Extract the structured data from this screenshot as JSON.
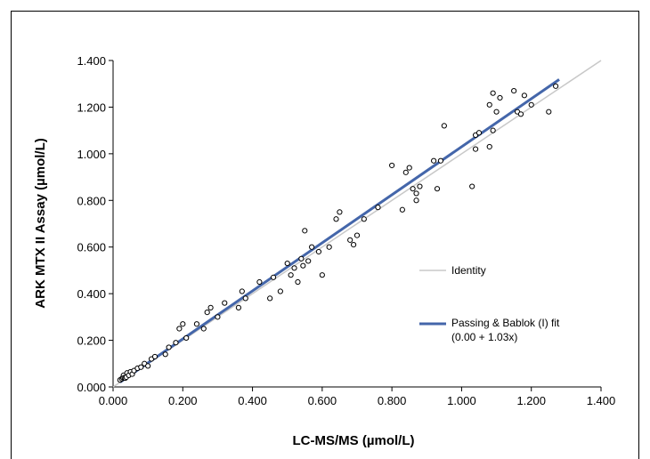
{
  "chart_data": {
    "type": "scatter",
    "xlabel": "LC-MS/MS (µmol/L)",
    "ylabel": "ARK MTX II Assay (µmol/L)",
    "xlim": [
      0,
      1.4
    ],
    "ylim": [
      0,
      1.4
    ],
    "x_ticks": [
      "0.000",
      "0.200",
      "0.400",
      "0.600",
      "0.800",
      "1.000",
      "1.200",
      "1.400"
    ],
    "y_ticks": [
      "0.000",
      "0.200",
      "0.400",
      "0.600",
      "0.800",
      "1.000",
      "1.200",
      "1.400"
    ],
    "grid": false,
    "legend_position": "right",
    "series": [
      {
        "kind": "points",
        "marker": "open-circle",
        "x": [
          0.02,
          0.025,
          0.028,
          0.03,
          0.032,
          0.035,
          0.038,
          0.04,
          0.045,
          0.05,
          0.055,
          0.06,
          0.07,
          0.08,
          0.09,
          0.1,
          0.11,
          0.12,
          0.15,
          0.16,
          0.18,
          0.19,
          0.2,
          0.21,
          0.24,
          0.26,
          0.27,
          0.28,
          0.3,
          0.32,
          0.36,
          0.37,
          0.38,
          0.42,
          0.45,
          0.46,
          0.48,
          0.5,
          0.51,
          0.52,
          0.53,
          0.54,
          0.545,
          0.55,
          0.56,
          0.57,
          0.59,
          0.6,
          0.62,
          0.64,
          0.65,
          0.68,
          0.69,
          0.7,
          0.72,
          0.76,
          0.8,
          0.83,
          0.84,
          0.85,
          0.86,
          0.87,
          0.87,
          0.88,
          0.92,
          0.93,
          0.94,
          0.95,
          1.03,
          1.04,
          1.04,
          1.05,
          1.08,
          1.08,
          1.09,
          1.09,
          1.1,
          1.11,
          1.15,
          1.16,
          1.17,
          1.18,
          1.2,
          1.25,
          1.27
        ],
        "y": [
          0.03,
          0.035,
          0.04,
          0.05,
          0.04,
          0.038,
          0.042,
          0.06,
          0.05,
          0.065,
          0.055,
          0.07,
          0.08,
          0.085,
          0.1,
          0.09,
          0.12,
          0.13,
          0.14,
          0.17,
          0.19,
          0.25,
          0.27,
          0.21,
          0.27,
          0.25,
          0.32,
          0.34,
          0.3,
          0.36,
          0.34,
          0.41,
          0.38,
          0.45,
          0.38,
          0.47,
          0.41,
          0.53,
          0.48,
          0.51,
          0.45,
          0.55,
          0.52,
          0.67,
          0.54,
          0.6,
          0.58,
          0.48,
          0.6,
          0.72,
          0.75,
          0.63,
          0.61,
          0.65,
          0.72,
          0.77,
          0.95,
          0.76,
          0.92,
          0.94,
          0.85,
          0.8,
          0.83,
          0.86,
          0.97,
          0.85,
          0.97,
          1.12,
          0.86,
          1.02,
          1.08,
          1.09,
          1.03,
          1.21,
          1.1,
          1.26,
          1.18,
          1.24,
          1.27,
          1.18,
          1.17,
          1.25,
          1.21,
          1.18,
          1.29
        ]
      },
      {
        "name": "Identity",
        "kind": "line",
        "color": "#c8c8c8",
        "x": [
          0,
          1.4
        ],
        "y": [
          0,
          1.4
        ]
      },
      {
        "name": "Passing & Bablok (I) fit",
        "name_line2": "(0.00 + 1.03x)",
        "kind": "line",
        "color": "#4466aa",
        "x": [
          0.02,
          1.28
        ],
        "y": [
          0.0206,
          1.3184
        ]
      }
    ]
  }
}
